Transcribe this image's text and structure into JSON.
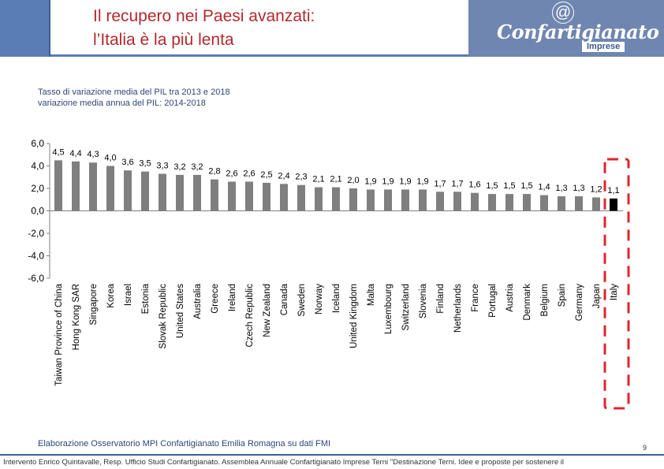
{
  "header": {
    "title_line1": "Il recupero nei Paesi avanzati:",
    "title_line2": "l’Italia è la più lenta",
    "logo_symbol": "@",
    "logo_text": "Confartigianato",
    "logo_sub": "Imprese",
    "accent_color": "#5b7db6",
    "title_color": "#b3282d"
  },
  "subtitle_line1": "Tasso di variazione media del PIL  tra 2013 e 2018",
  "subtitle_line2": "variazione media annua del PIL: 2014-2018",
  "footer_note": "Elaborazione Osservatorio MPI Confartigianato Emilia Romagna su dati FMI",
  "page_number": "9",
  "footer_text": "Intervento Enrico Quintavalle, Resp. Ufficio Studi Confartigianato. Assemblea Annuale Confartigianato Imprese Terni \"Destinazione Terni. Idee e proposte per sostenere il",
  "chart_data": {
    "type": "bar",
    "title": "",
    "xlabel": "",
    "ylabel": "",
    "ylim": [
      -6.0,
      6.0
    ],
    "yticks": [
      "6,0",
      "4,0",
      "2,0",
      "0,0",
      "-2,0",
      "-4,0",
      "-6,0"
    ],
    "grid": false,
    "bar_color": "#7f7f7f",
    "highlight_color": "#000000",
    "highlight_box_color": "#e0262b",
    "highlight_category": "Italy",
    "categories": [
      "Taiwan Province of China",
      "Hong Kong SAR",
      "Singapore",
      "Korea",
      "Israel",
      "Estonia",
      "Slovak Republic",
      "United States",
      "Australia",
      "Greece",
      "Ireland",
      "Czech Republic",
      "New Zealand",
      "Canada",
      "Sweden",
      "Norway",
      "Iceland",
      "United Kingdom",
      "Malta",
      "Luxembourg",
      "Switzerland",
      "Slovenia",
      "Finland",
      "Netherlands",
      "France",
      "Portugal",
      "Austria",
      "Denmark",
      "Belgium",
      "Spain",
      "Germany",
      "Japan",
      "Italy"
    ],
    "values": [
      4.5,
      4.4,
      4.3,
      4.0,
      3.6,
      3.5,
      3.3,
      3.2,
      3.2,
      2.8,
      2.6,
      2.6,
      2.5,
      2.4,
      2.3,
      2.1,
      2.1,
      2.0,
      1.9,
      1.9,
      1.9,
      1.9,
      1.7,
      1.7,
      1.6,
      1.5,
      1.5,
      1.5,
      1.4,
      1.3,
      1.3,
      1.2,
      1.1
    ],
    "labels": [
      "4,5",
      "4,4",
      "4,3",
      "4,0",
      "3,6",
      "3,5",
      "3,3",
      "3,2",
      "3,2",
      "2,8",
      "2,6",
      "2,6",
      "2,5",
      "2,4",
      "2,3",
      "2,1",
      "2,1",
      "2,0",
      "1,9",
      "1,9",
      "1,9",
      "1,9",
      "1,7",
      "1,7",
      "1,6",
      "1,5",
      "1,5",
      "1,5",
      "1,4",
      "1,3",
      "1,3",
      "1,2",
      "1,1"
    ]
  }
}
